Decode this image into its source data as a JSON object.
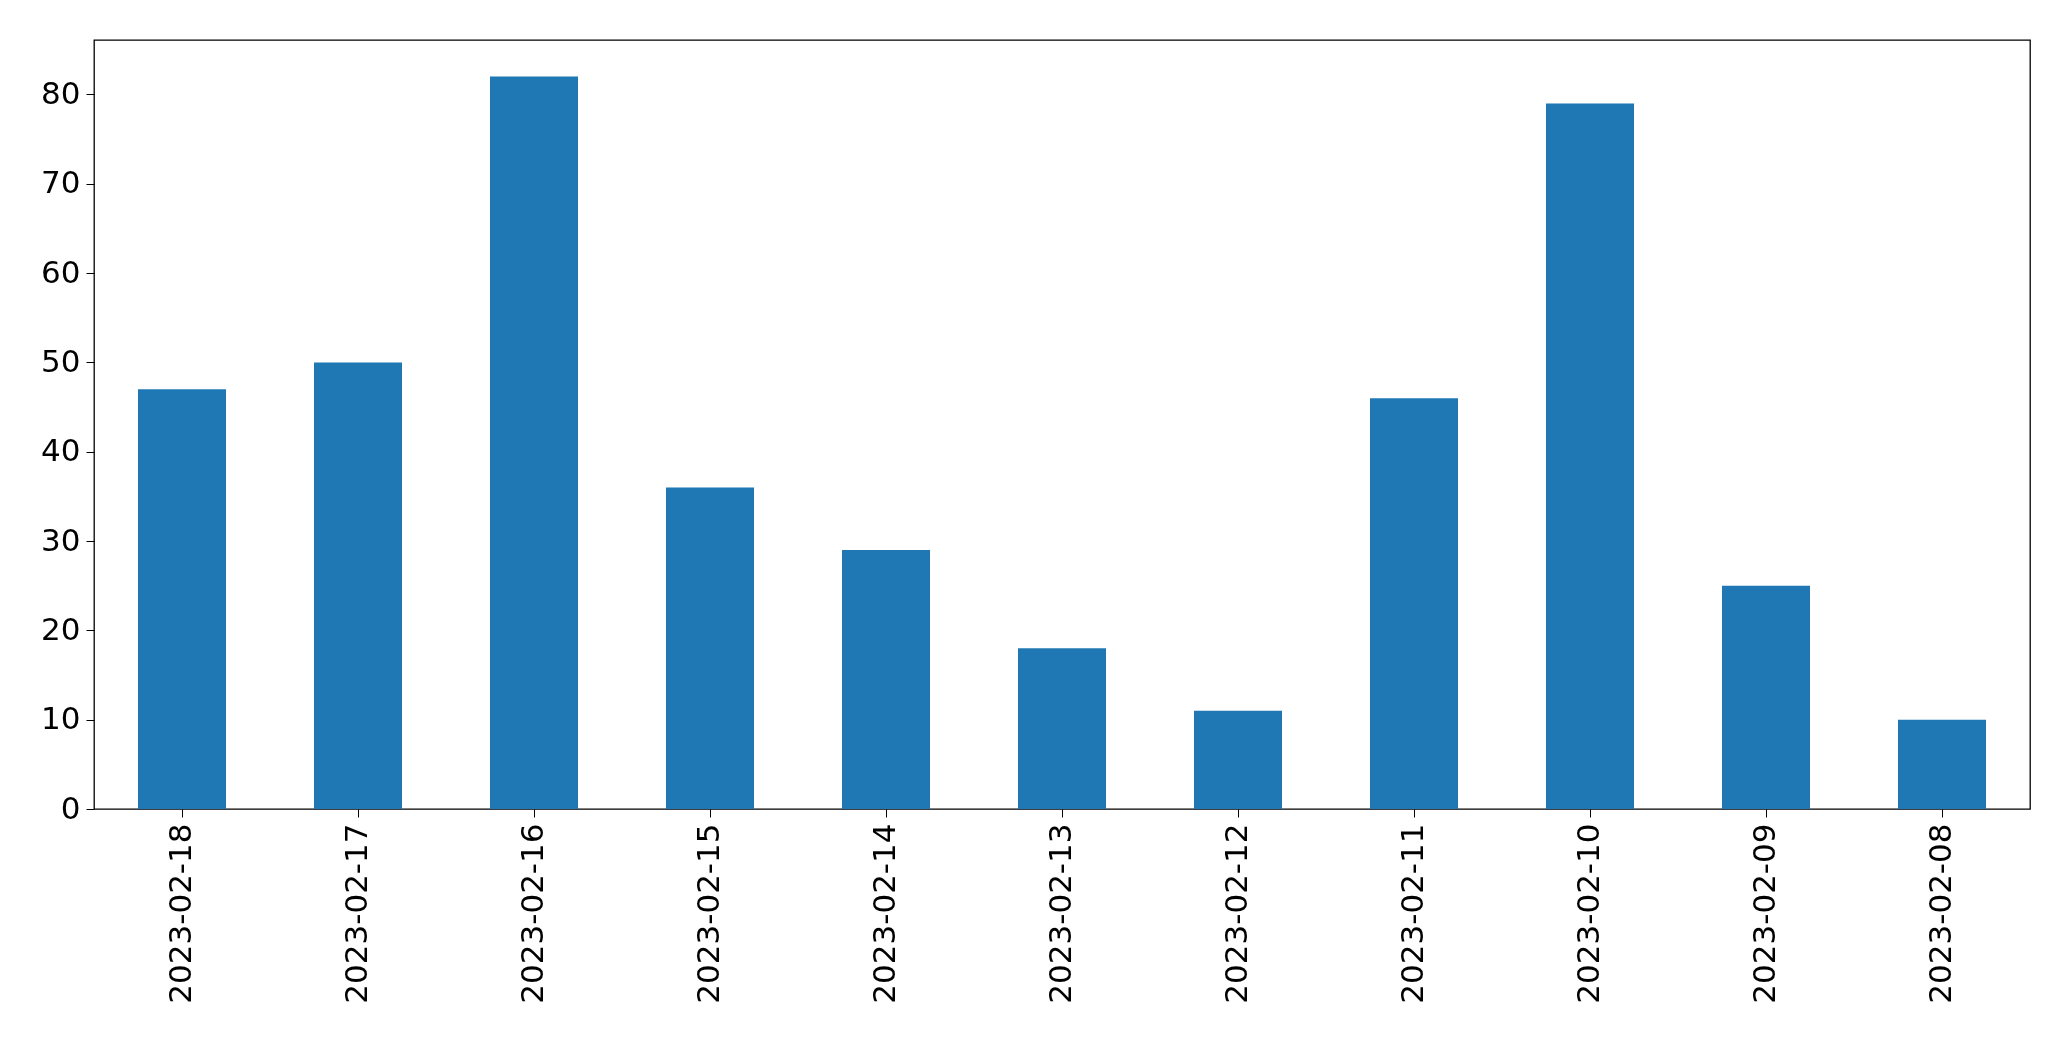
{
  "chart_data": {
    "type": "bar",
    "categories": [
      "2023-02-18",
      "2023-02-17",
      "2023-02-16",
      "2023-02-15",
      "2023-02-14",
      "2023-02-13",
      "2023-02-12",
      "2023-02-11",
      "2023-02-10",
      "2023-02-09",
      "2023-02-08"
    ],
    "values": [
      47,
      50,
      82,
      36,
      29,
      18,
      11,
      46,
      79,
      25,
      10
    ],
    "color": "#1f77b4",
    "ylim": [
      0,
      86.1
    ],
    "yticks": [
      0,
      10,
      20,
      30,
      40,
      50,
      60,
      70,
      80
    ],
    "grid": false
  }
}
